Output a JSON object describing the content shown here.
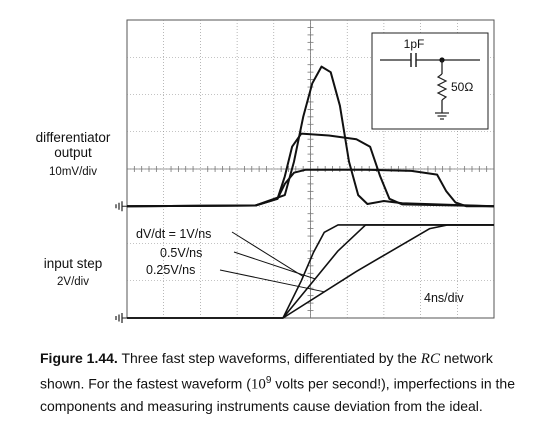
{
  "chart_data": {
    "type": "line",
    "labels": {
      "differentiator_line1": "differentiator",
      "differentiator_line2": "output",
      "differentiator_scale": "10mV/div",
      "input_label": "input step",
      "input_scale": "2V/div",
      "time_scale": "4ns/div",
      "rate_1": "dV/dt = 1V/ns",
      "rate_2": "0.5V/ns",
      "rate_3": "0.25V/ns"
    },
    "circuit": {
      "capacitor": "1pF",
      "resistor": "50Ω"
    },
    "grid": true,
    "divisions": {
      "x": 10,
      "y": 8
    },
    "series": [
      {
        "name": "dV/dt = 1V/ns",
        "input_step": [
          [
            0,
            0
          ],
          [
            17,
            0
          ],
          [
            19,
            2
          ],
          [
            20.3,
            3.5
          ],
          [
            21.5,
            4.6
          ],
          [
            23,
            5.0
          ],
          [
            40,
            5.0
          ]
        ],
        "output_mV": [
          [
            0,
            0
          ],
          [
            14,
            0.2
          ],
          [
            17.2,
            3
          ],
          [
            18.2,
            12
          ],
          [
            19.2,
            24
          ],
          [
            20.2,
            33
          ],
          [
            21.2,
            37.5
          ],
          [
            22.2,
            36
          ],
          [
            23.2,
            27
          ],
          [
            24.2,
            12
          ],
          [
            25.2,
            3
          ],
          [
            26.2,
            0.6
          ],
          [
            28,
            1.4
          ],
          [
            30,
            0.8
          ],
          [
            40,
            0
          ]
        ]
      },
      {
        "name": "0.5V/ns",
        "input_step": [
          [
            0,
            0
          ],
          [
            17,
            0
          ],
          [
            20,
            1.8
          ],
          [
            23,
            3.6
          ],
          [
            26,
            5.0
          ],
          [
            40,
            5.0
          ]
        ],
        "output_mV": [
          [
            0,
            0
          ],
          [
            14,
            0.2
          ],
          [
            16.4,
            2
          ],
          [
            17.2,
            8
          ],
          [
            18,
            16
          ],
          [
            19,
            19.5
          ],
          [
            22,
            19
          ],
          [
            25,
            18
          ],
          [
            26.5,
            16
          ],
          [
            27.6,
            8
          ],
          [
            28.6,
            2
          ],
          [
            30,
            0.5
          ],
          [
            40,
            0
          ]
        ]
      },
      {
        "name": "0.25V/ns",
        "input_step": [
          [
            0,
            0
          ],
          [
            17,
            0
          ],
          [
            25,
            2.5
          ],
          [
            33,
            4.8
          ],
          [
            35,
            5.0
          ],
          [
            40,
            5.0
          ]
        ],
        "output_mV": [
          [
            0,
            0
          ],
          [
            14,
            0.2
          ],
          [
            16.4,
            2
          ],
          [
            17.2,
            6
          ],
          [
            18.2,
            9
          ],
          [
            19.5,
            9.8
          ],
          [
            26,
            9.8
          ],
          [
            31,
            9.5
          ],
          [
            33.8,
            8.5
          ],
          [
            34.8,
            4
          ],
          [
            35.8,
            1
          ],
          [
            37,
            0
          ],
          [
            40,
            0
          ]
        ]
      }
    ]
  },
  "caption": {
    "figure_number": "Figure 1.44.",
    "text_1": " Three fast step waveforms, differentiated by the ",
    "rc": "RC",
    "text_2": " network shown. For the fastest waveform (",
    "power_base": "10",
    "power_exp": "9",
    "text_3": " volts per second!), imperfections in the components and measuring instruments cause deviation from the ideal."
  }
}
